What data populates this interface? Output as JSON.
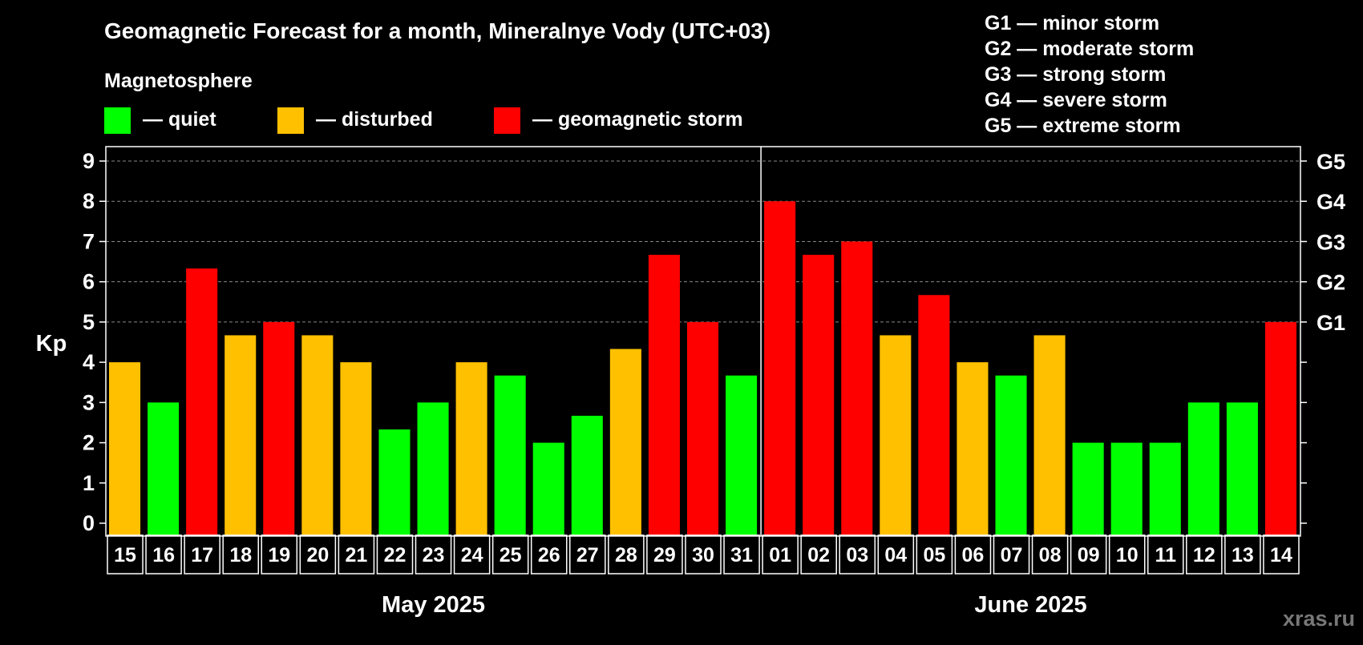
{
  "title": "Geomagnetic Forecast for a month, Mineralnye Vody (UTC+03)",
  "legend": {
    "heading": "Magnetosphere",
    "items": [
      {
        "label": "— quiet",
        "color": "#00ff00"
      },
      {
        "label": "— disturbed",
        "color": "#ffc000"
      },
      {
        "label": "— geomagnetic storm",
        "color": "#ff0000"
      }
    ],
    "storm_levels": [
      "G1 — minor storm",
      "G2 — moderate storm",
      "G3 — strong storm",
      "G4 — severe storm",
      "G5 — extreme storm"
    ]
  },
  "watermark": "xras.ru",
  "chart_data": {
    "type": "bar",
    "ylabel": "Kp",
    "ylim": [
      0,
      9
    ],
    "yticks": [
      "0",
      "1",
      "2",
      "3",
      "4",
      "5",
      "6",
      "7",
      "8",
      "9"
    ],
    "right_ticks": [
      {
        "value": 5,
        "label": "G1"
      },
      {
        "value": 6,
        "label": "G2"
      },
      {
        "value": 7,
        "label": "G3"
      },
      {
        "value": 8,
        "label": "G4"
      },
      {
        "value": 9,
        "label": "G5"
      }
    ],
    "grid": "dashed horizontal at 5-9",
    "months": [
      {
        "label": "May 2025",
        "start_index": 0,
        "count": 17
      },
      {
        "label": "June 2025",
        "start_index": 17,
        "count": 14
      }
    ],
    "categories": [
      "15",
      "16",
      "17",
      "18",
      "19",
      "20",
      "21",
      "22",
      "23",
      "24",
      "25",
      "26",
      "27",
      "28",
      "29",
      "30",
      "31",
      "01",
      "02",
      "03",
      "04",
      "05",
      "06",
      "07",
      "08",
      "09",
      "10",
      "11",
      "12",
      "13",
      "14"
    ],
    "values": [
      4,
      3,
      6.33,
      4.67,
      5,
      4.67,
      4,
      2.33,
      3,
      4,
      3.67,
      2,
      2.67,
      4.33,
      6.67,
      5,
      3.67,
      8,
      6.67,
      7,
      4.67,
      5.67,
      4,
      3.67,
      4.67,
      2,
      2,
      2,
      3,
      3,
      5
    ],
    "levels": [
      "disturbed",
      "quiet",
      "storm",
      "disturbed",
      "storm",
      "disturbed",
      "disturbed",
      "quiet",
      "quiet",
      "disturbed",
      "quiet",
      "quiet",
      "quiet",
      "disturbed",
      "storm",
      "storm",
      "quiet",
      "storm",
      "storm",
      "storm",
      "disturbed",
      "storm",
      "disturbed",
      "quiet",
      "disturbed",
      "quiet",
      "quiet",
      "quiet",
      "quiet",
      "quiet",
      "storm"
    ],
    "level_colors": {
      "quiet": "#00ff00",
      "disturbed": "#ffc000",
      "storm": "#ff0000"
    }
  }
}
